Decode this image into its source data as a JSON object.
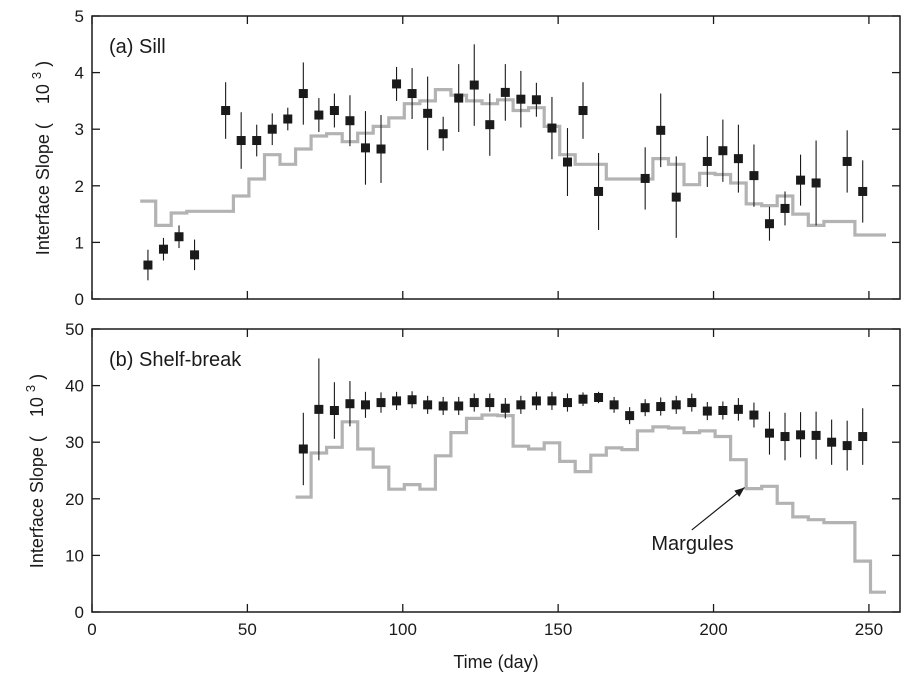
{
  "chart_data": [
    {
      "type": "scatter",
      "title": "(a) Sill",
      "xlabel": "",
      "ylabel": "Interface Slope (",
      "ylabel_unit": "10",
      "ylabel_exp": "3",
      "ylabel_close": ")",
      "xlim": [
        0,
        260
      ],
      "ylim": [
        0,
        5
      ],
      "xticks": [
        0,
        50,
        100,
        150,
        200,
        250
      ],
      "yticks": [
        0,
        1,
        2,
        3,
        4,
        5
      ],
      "xtick_labels": [],
      "ytick_labels": [
        "0",
        "1",
        "2",
        "3",
        "4",
        "5"
      ],
      "grid": false,
      "series": [
        {
          "type": "scatter",
          "marker": "square",
          "color": "#1a1a1a",
          "x": [
            18,
            23,
            28,
            33,
            43,
            48,
            53,
            58,
            63,
            68,
            73,
            78,
            83,
            88,
            93,
            98,
            103,
            108,
            113,
            118,
            123,
            128,
            133,
            138,
            143,
            148,
            153,
            158,
            163,
            178,
            183,
            188,
            198,
            203,
            208,
            213,
            218,
            223,
            228,
            233,
            243,
            248
          ],
          "y": [
            0.6,
            0.88,
            1.1,
            0.78,
            3.33,
            2.8,
            2.8,
            3.0,
            3.18,
            3.63,
            3.25,
            3.33,
            3.15,
            2.67,
            2.65,
            3.8,
            3.63,
            3.28,
            2.92,
            3.55,
            3.78,
            3.08,
            3.65,
            3.53,
            3.52,
            3.02,
            2.42,
            3.33,
            1.9,
            2.13,
            2.98,
            1.8,
            2.43,
            2.62,
            2.48,
            2.18,
            1.33,
            1.6,
            2.1,
            2.05,
            2.43,
            1.9
          ],
          "err": [
            0.27,
            0.2,
            0.2,
            0.27,
            0.5,
            0.5,
            0.28,
            0.28,
            0.2,
            0.55,
            0.3,
            0.3,
            0.45,
            0.65,
            0.6,
            0.3,
            0.45,
            0.65,
            0.3,
            0.6,
            0.72,
            0.55,
            0.5,
            0.5,
            0.3,
            0.55,
            0.6,
            0.5,
            0.68,
            0.55,
            0.65,
            0.72,
            0.45,
            0.55,
            0.6,
            0.55,
            0.3,
            0.3,
            0.45,
            0.75,
            0.55,
            0.55
          ]
        },
        {
          "type": "step",
          "color": "#b3b3b3",
          "x": [
            15.5,
            20.5,
            25.5,
            30.5,
            45.5,
            50.5,
            55.5,
            60.5,
            65.5,
            70.5,
            75.5,
            80.5,
            85.5,
            90.5,
            95.5,
            100.5,
            105.5,
            110.5,
            115.5,
            120.5,
            125.5,
            130.5,
            135.5,
            140.5,
            145.5,
            150.5,
            155.5,
            160.5,
            165.5,
            175.5,
            180.5,
            185.5,
            190.5,
            195.5,
            200.5,
            205.5,
            210.5,
            215.5,
            220.5,
            225.5,
            230.5,
            235.5,
            245.5,
            250.5
          ],
          "y": [
            1.73,
            1.3,
            1.52,
            1.55,
            1.82,
            2.12,
            2.55,
            2.38,
            2.65,
            2.88,
            2.92,
            2.78,
            2.93,
            3.05,
            3.2,
            3.45,
            3.5,
            3.7,
            3.6,
            3.5,
            3.45,
            3.52,
            3.33,
            3.38,
            3.05,
            2.55,
            2.38,
            2.38,
            2.12,
            2.12,
            2.48,
            2.38,
            2.02,
            2.22,
            2.2,
            2.05,
            1.68,
            1.65,
            1.82,
            1.5,
            1.3,
            1.37,
            1.13,
            1.13
          ]
        }
      ]
    },
    {
      "type": "scatter",
      "title": "(b) Shelf-break",
      "xlabel": "Time (day)",
      "ylabel": "Interface Slope (",
      "ylabel_unit": "10",
      "ylabel_exp": "3",
      "ylabel_close": ")",
      "xlim": [
        0,
        260
      ],
      "ylim": [
        0,
        50
      ],
      "xticks": [
        0,
        50,
        100,
        150,
        200,
        250
      ],
      "yticks": [
        0,
        10,
        20,
        30,
        40,
        50
      ],
      "xtick_labels": [
        "0",
        "50",
        "100",
        "150",
        "200",
        "250"
      ],
      "ytick_labels": [
        "0",
        "10",
        "20",
        "30",
        "40",
        "50"
      ],
      "grid": false,
      "annotation": {
        "text": "Margules",
        "x": 210,
        "y": 22,
        "text_x": 193,
        "text_y": 14.5
      },
      "series": [
        {
          "type": "scatter",
          "marker": "square",
          "color": "#1a1a1a",
          "x": [
            68,
            73,
            78,
            83,
            88,
            93,
            98,
            103,
            108,
            113,
            118,
            123,
            128,
            133,
            138,
            143,
            148,
            153,
            158,
            163,
            168,
            173,
            178,
            183,
            188,
            193,
            198,
            203,
            208,
            213,
            218,
            223,
            228,
            233,
            238,
            243,
            248
          ],
          "y": [
            28.8,
            35.8,
            35.6,
            36.8,
            36.6,
            37.0,
            37.3,
            37.5,
            36.6,
            36.4,
            36.4,
            37.0,
            37.0,
            36.0,
            36.6,
            37.3,
            37.3,
            37.0,
            37.6,
            37.9,
            36.6,
            34.7,
            36.1,
            36.3,
            36.6,
            37.0,
            35.5,
            35.6,
            35.8,
            34.8,
            31.6,
            31.0,
            31.3,
            31.2,
            30.0,
            29.4,
            31.0
          ],
          "err": [
            6.4,
            9.0,
            5.0,
            4.0,
            2.3,
            1.8,
            1.6,
            1.5,
            1.6,
            1.6,
            1.6,
            1.6,
            1.6,
            1.8,
            1.6,
            1.6,
            1.6,
            1.6,
            1.2,
            1.0,
            1.4,
            1.5,
            1.5,
            1.6,
            1.6,
            1.6,
            1.6,
            1.6,
            2.0,
            2.2,
            3.8,
            4.2,
            4.0,
            4.2,
            4.0,
            4.4,
            5.0
          ]
        },
        {
          "type": "step",
          "color": "#b3b3b3",
          "x": [
            65.5,
            70.5,
            75.5,
            80.5,
            85.5,
            90.5,
            95.5,
            100.5,
            105.5,
            110.5,
            115.5,
            120.5,
            125.5,
            130.5,
            135.5,
            140.5,
            145.5,
            150.5,
            155.5,
            160.5,
            165.5,
            170.5,
            175.5,
            180.5,
            185.5,
            190.5,
            195.5,
            200.5,
            205.5,
            210.5,
            215.5,
            220.5,
            225.5,
            230.5,
            235.5,
            245.5,
            250.5
          ],
          "y": [
            20.3,
            28.1,
            29.1,
            33.6,
            28.8,
            25.6,
            21.7,
            22.5,
            21.7,
            27.6,
            31.7,
            34.2,
            34.8,
            34.7,
            29.3,
            28.8,
            29.9,
            26.6,
            24.8,
            27.7,
            29.0,
            28.7,
            32.0,
            32.7,
            32.5,
            31.7,
            32.0,
            31.0,
            26.9,
            21.8,
            22.2,
            19.2,
            16.8,
            16.3,
            15.8,
            9.0,
            3.5
          ]
        }
      ]
    }
  ]
}
